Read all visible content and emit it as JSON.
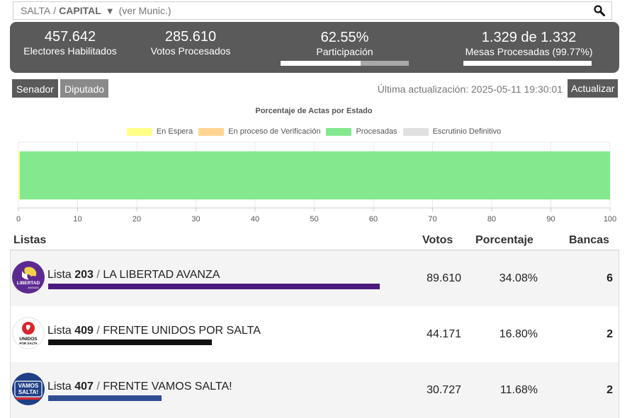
{
  "location": {
    "province": "SALTA",
    "separator": "/",
    "city": "CAPITAL",
    "dropdown_glyph": "▼",
    "munic_link": "(ver Munic.)",
    "search_icon": "search-icon"
  },
  "stats": {
    "electores": {
      "value": "457.642",
      "label": "Electores Habilitados"
    },
    "votos": {
      "value": "285.610",
      "label": "Votos Procesados"
    },
    "participacion": {
      "value": "62.55%",
      "label": "Participación",
      "fraction": 0.6255
    },
    "mesas": {
      "value": "1.329 de 1.332",
      "label": "Mesas Procesadas (99.77%)",
      "fraction": 0.9977
    }
  },
  "tabs": {
    "senador": "Senador",
    "diputado": "Diputado",
    "active": "Diputado"
  },
  "updated": "Última actualización: 2025-05-11 19:30:01",
  "update_button": "Actualizar",
  "chart_data": {
    "type": "bar",
    "orientation": "horizontal",
    "title": "Porcentaje de Actas por Estado",
    "stacked": true,
    "legend_position": "top",
    "xlim": [
      0,
      100
    ],
    "xticks": [
      "0",
      "10",
      "20",
      "30",
      "40",
      "50",
      "60",
      "70",
      "80",
      "90",
      "100"
    ],
    "series": [
      {
        "name": "En Espera",
        "value": 0.23,
        "color": "#ffff88"
      },
      {
        "name": "En proceso de Verificación",
        "value": 0,
        "color": "#ffd592"
      },
      {
        "name": "Procesadas",
        "value": 99.77,
        "color": "#84e98e"
      },
      {
        "name": "Escrutinio Definitivo",
        "value": 0,
        "color": "#e0e0e0"
      }
    ]
  },
  "table": {
    "headers": {
      "listas": "Listas",
      "votos": "Votos",
      "porcentaje": "Porcentaje",
      "bancas": "Bancas"
    },
    "rows": [
      {
        "prefix": "Lista",
        "number": "203",
        "slash": "/",
        "name": "LA LIBERTAD AVANZA",
        "votos": "89.610",
        "porcentaje": "34.08%",
        "bancas": "6",
        "bar_color": "#4b1a7d",
        "share": 0.3408,
        "logo": "lion-logo-icon"
      },
      {
        "prefix": "Lista",
        "number": "409",
        "slash": "/",
        "name": "FRENTE UNIDOS POR SALTA",
        "votos": "44.171",
        "porcentaje": "16.80%",
        "bancas": "2",
        "bar_color": "#111111",
        "share": 0.168,
        "logo": "unidos-logo-icon",
        "logo_text_1": "UNIDOS",
        "logo_text_2": "POR SALTA"
      },
      {
        "prefix": "Lista",
        "number": "407",
        "slash": "/",
        "name": "FRENTE VAMOS SALTA!",
        "votos": "30.727",
        "porcentaje": "11.68%",
        "bancas": "2",
        "bar_color": "#2f4d92",
        "share": 0.1168,
        "logo": "vamos-logo-icon",
        "logo_text_1": "VAMOS",
        "logo_text_2": "SALTA!"
      }
    ]
  }
}
